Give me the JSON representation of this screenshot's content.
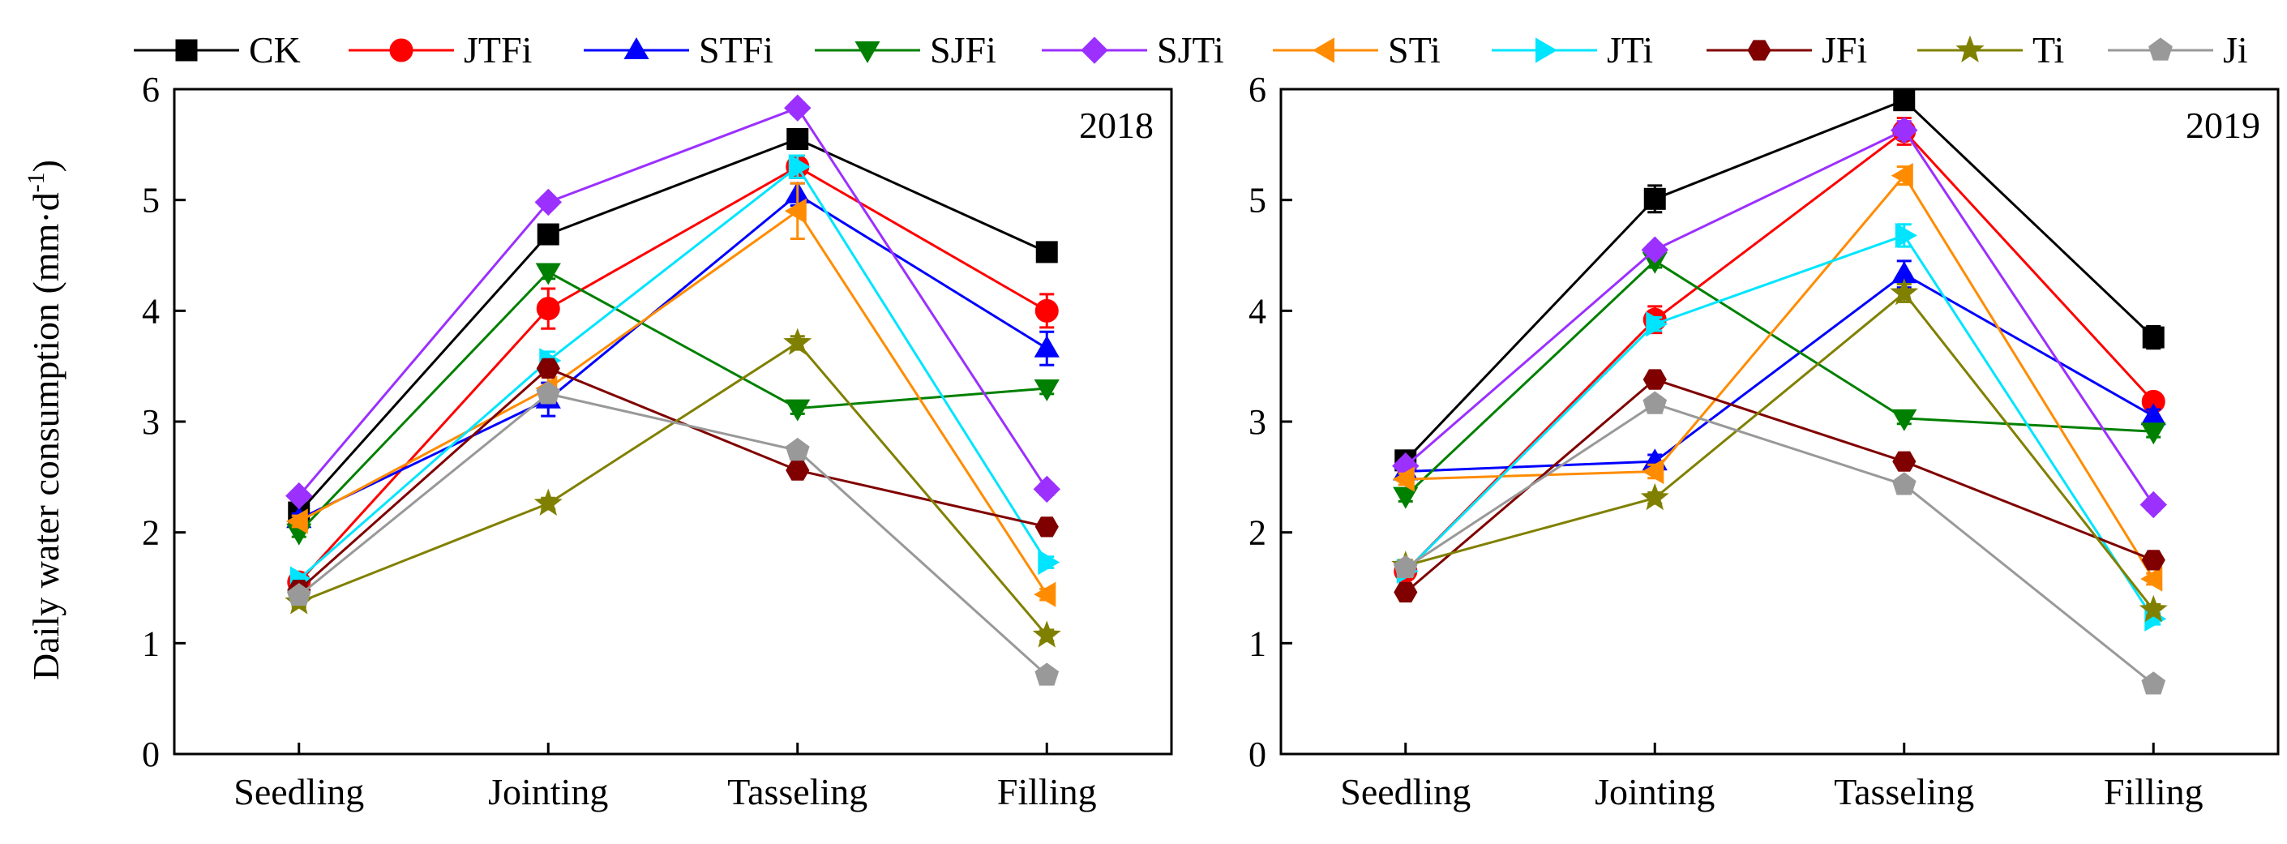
{
  "chart_data": {
    "type": "line",
    "ylabel": "Daily water consumption (mm·d",
    "ylabel_sup": "-1",
    "ylabel_close": ")",
    "categories": [
      "Seedling",
      "Jointing",
      "Tasseling",
      "Filling"
    ],
    "ylim": [
      0,
      6
    ],
    "yticks": [
      "0",
      "1",
      "2",
      "3",
      "4",
      "5",
      "6"
    ],
    "legend": [
      {
        "name": "CK",
        "color": "#000000",
        "marker": "square"
      },
      {
        "name": "JTFi",
        "color": "#ff0000",
        "marker": "circle"
      },
      {
        "name": "STFi",
        "color": "#0000ff",
        "marker": "triangle-up"
      },
      {
        "name": "SJFi",
        "color": "#008000",
        "marker": "triangle-down"
      },
      {
        "name": "SJTi",
        "color": "#9b30ff",
        "marker": "diamond"
      },
      {
        "name": "STi",
        "color": "#ff8c00",
        "marker": "triangle-left"
      },
      {
        "name": "JTi",
        "color": "#00e5ff",
        "marker": "triangle-right"
      },
      {
        "name": "JFi",
        "color": "#800000",
        "marker": "hexagon"
      },
      {
        "name": "Ti",
        "color": "#808000",
        "marker": "star"
      },
      {
        "name": "Ji",
        "color": "#999999",
        "marker": "pentagon"
      }
    ],
    "panels": [
      {
        "year": "2018",
        "series": [
          {
            "name": "CK",
            "values": [
              2.18,
              4.69,
              5.55,
              4.53
            ],
            "errors": [
              0.05,
              0.06,
              0.06,
              0.06
            ]
          },
          {
            "name": "JTFi",
            "values": [
              1.55,
              4.02,
              5.3,
              4.0
            ],
            "errors": [
              0.05,
              0.18,
              0.1,
              0.15
            ]
          },
          {
            "name": "STFi",
            "values": [
              2.12,
              3.2,
              5.05,
              3.66
            ],
            "errors": [
              0.05,
              0.15,
              0.1,
              0.15
            ]
          },
          {
            "name": "SJFi",
            "values": [
              2.0,
              4.35,
              3.12,
              3.3
            ],
            "errors": [
              0.04,
              0.06,
              0.05,
              0.05
            ]
          },
          {
            "name": "SJTi",
            "values": [
              2.33,
              4.98,
              5.83,
              2.39
            ],
            "errors": [
              0.04,
              0.05,
              0.05,
              0.05
            ]
          },
          {
            "name": "STi",
            "values": [
              2.1,
              3.3,
              4.9,
              1.44
            ],
            "errors": [
              0.05,
              0.1,
              0.25,
              0.05
            ]
          },
          {
            "name": "JTi",
            "values": [
              1.58,
              3.55,
              5.3,
              1.73
            ],
            "errors": [
              0.04,
              0.08,
              0.1,
              0.05
            ]
          },
          {
            "name": "JFi",
            "values": [
              1.48,
              3.48,
              2.56,
              2.05
            ],
            "errors": [
              0.04,
              0.06,
              0.05,
              0.05
            ]
          },
          {
            "name": "Ti",
            "values": [
              1.37,
              2.26,
              3.71,
              1.07
            ],
            "errors": [
              0.04,
              0.05,
              0.06,
              0.05
            ]
          },
          {
            "name": "Ji",
            "values": [
              1.43,
              3.25,
              2.74,
              0.71
            ],
            "errors": [
              0.04,
              0.06,
              0.05,
              0.04
            ]
          }
        ]
      },
      {
        "year": "2019",
        "series": [
          {
            "name": "CK",
            "values": [
              2.65,
              5.01,
              5.9,
              3.76
            ],
            "errors": [
              0.05,
              0.12,
              0.08,
              0.1
            ]
          },
          {
            "name": "JTFi",
            "values": [
              1.65,
              3.92,
              5.62,
              3.18
            ],
            "errors": [
              0.05,
              0.12,
              0.12,
              0.06
            ]
          },
          {
            "name": "STFi",
            "values": [
              2.55,
              2.64,
              4.33,
              3.05
            ],
            "errors": [
              0.05,
              0.06,
              0.12,
              0.06
            ]
          },
          {
            "name": "SJFi",
            "values": [
              2.33,
              4.45,
              3.03,
              2.91
            ],
            "errors": [
              0.05,
              0.06,
              0.05,
              0.05
            ]
          },
          {
            "name": "SJTi",
            "values": [
              2.6,
              4.55,
              5.63,
              2.25
            ],
            "errors": [
              0.05,
              0.05,
              0.08,
              0.05
            ]
          },
          {
            "name": "STi",
            "values": [
              2.48,
              2.55,
              5.22,
              1.58
            ],
            "errors": [
              0.05,
              0.06,
              0.08,
              0.05
            ]
          },
          {
            "name": "JTi",
            "values": [
              1.65,
              3.88,
              4.68,
              1.22
            ],
            "errors": [
              0.05,
              0.06,
              0.1,
              0.05
            ]
          },
          {
            "name": "JFi",
            "values": [
              1.46,
              3.38,
              2.64,
              1.75
            ],
            "errors": [
              0.05,
              0.06,
              0.05,
              0.05
            ]
          },
          {
            "name": "Ti",
            "values": [
              1.7,
              2.31,
              4.16,
              1.3
            ],
            "errors": [
              0.05,
              0.05,
              0.08,
              0.05
            ]
          },
          {
            "name": "Ji",
            "values": [
              1.68,
              3.16,
              2.43,
              0.63
            ],
            "errors": [
              0.05,
              0.06,
              0.05,
              0.04
            ]
          }
        ]
      }
    ]
  }
}
